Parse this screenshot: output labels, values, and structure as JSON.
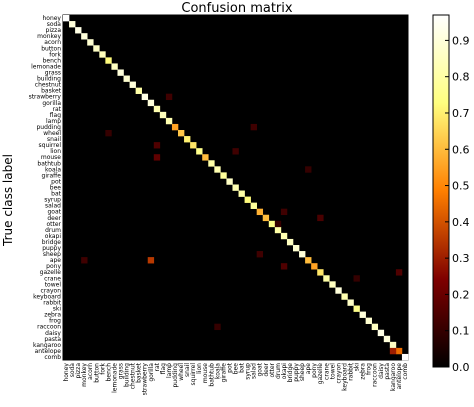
{
  "chart_data": {
    "type": "heatmap",
    "title": "Confusion matrix",
    "ylabel": "True class label",
    "xlabel": "",
    "labels": [
      "honey",
      "soda",
      "pizza",
      "monkey",
      "acorn",
      "button",
      "fork",
      "bench",
      "lemonade",
      "grass",
      "building",
      "chestnut",
      "basket",
      "strawberry",
      "gorilla",
      "rat",
      "flag",
      "lamp",
      "pudding",
      "wheel",
      "snail",
      "squirrel",
      "lion",
      "mouse",
      "bathtub",
      "koala",
      "giraffe",
      "pot",
      "bee",
      "bat",
      "syrup",
      "salad",
      "goat",
      "deer",
      "otter",
      "drum",
      "okapi",
      "bridge",
      "puppy",
      "sheep",
      "ape",
      "pony",
      "gazelle",
      "crane",
      "towel",
      "crayon",
      "keyboard",
      "rabbit",
      "ski",
      "zebra",
      "frog",
      "raccoon",
      "daisy",
      "pasta",
      "kangaroo",
      "antelope",
      "comb"
    ],
    "diagonal": [
      0.97,
      0.9,
      0.92,
      0.9,
      0.88,
      0.86,
      0.84,
      0.72,
      0.85,
      0.9,
      0.88,
      0.9,
      0.8,
      0.92,
      0.9,
      0.82,
      0.84,
      0.82,
      0.55,
      0.62,
      0.7,
      0.68,
      0.75,
      0.6,
      0.8,
      0.82,
      0.78,
      0.86,
      0.82,
      0.8,
      0.72,
      0.78,
      0.58,
      0.6,
      0.75,
      0.8,
      0.82,
      0.85,
      0.88,
      0.9,
      0.6,
      0.55,
      0.68,
      0.8,
      0.85,
      0.9,
      0.82,
      0.86,
      0.75,
      0.9,
      0.88,
      0.85,
      0.92,
      0.9,
      0.86,
      0.45,
      0.98
    ],
    "off_diagonal": [
      {
        "true": "pudding",
        "pred": "salad",
        "value": 0.12
      },
      {
        "true": "wheel",
        "pred": "bench",
        "value": 0.1
      },
      {
        "true": "mouse",
        "pred": "rat",
        "value": 0.18
      },
      {
        "true": "squirrel",
        "pred": "rat",
        "value": 0.15
      },
      {
        "true": "goat",
        "pred": "okapi",
        "value": 0.12
      },
      {
        "true": "deer",
        "pred": "gazelle",
        "value": 0.14
      },
      {
        "true": "ape",
        "pred": "monkey",
        "value": 0.12
      },
      {
        "true": "ape",
        "pred": "gorilla",
        "value": 0.35
      },
      {
        "true": "pony",
        "pred": "okapi",
        "value": 0.15
      },
      {
        "true": "antelope",
        "pred": "kangaroo",
        "value": 0.3
      },
      {
        "true": "gazelle",
        "pred": "antelope",
        "value": 0.15
      },
      {
        "true": "lion",
        "pred": "bee",
        "value": 0.12
      },
      {
        "true": "koala",
        "pred": "ape",
        "value": 0.1
      },
      {
        "true": "crane",
        "pred": "ski",
        "value": 0.1
      },
      {
        "true": "strawberry",
        "pred": "lamp",
        "value": 0.12
      },
      {
        "true": "sheep",
        "pred": "goat",
        "value": 0.12
      },
      {
        "true": "otter",
        "pred": "drum",
        "value": 0.1
      },
      {
        "true": "raccoon",
        "pred": "koala",
        "value": 0.1
      }
    ],
    "colorbar": {
      "min": 0.0,
      "max": 0.97,
      "ticks": [
        "0.0",
        "0.1",
        "0.2",
        "0.3",
        "0.4",
        "0.5",
        "0.6",
        "0.7",
        "0.8",
        "0.9"
      ]
    },
    "colormap": "afmhot"
  }
}
